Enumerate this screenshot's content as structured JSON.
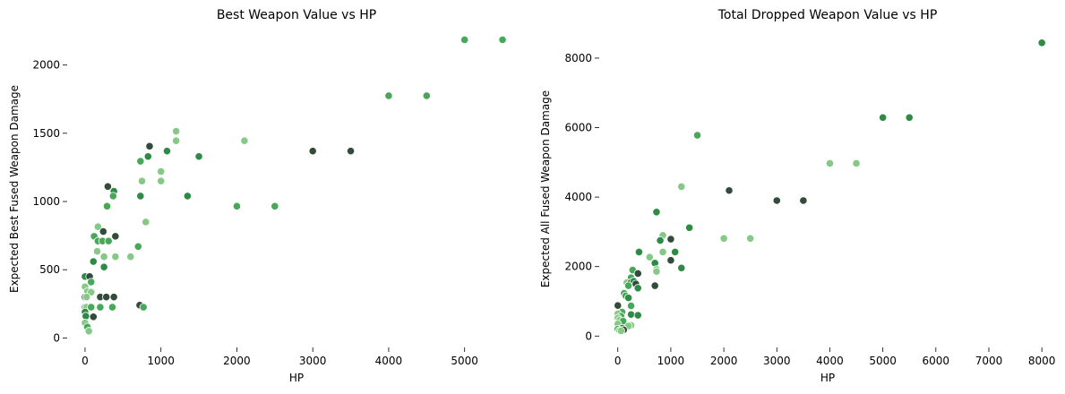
{
  "chart_data": [
    {
      "type": "scatter",
      "title": "Best Weapon Value vs HP",
      "xlabel": "HP",
      "ylabel": "Expected Best Fused Weapon Damage",
      "xlim": [
        -200,
        5700
      ],
      "ylim": [
        -50,
        2280
      ],
      "xticks": [
        0,
        1000,
        2000,
        3000,
        4000,
        5000
      ],
      "yticks": [
        0,
        500,
        1000,
        1500,
        2000
      ],
      "grid": false,
      "colors": [
        "#334b3a",
        "#2e8b45",
        "#47a85a",
        "#86c986"
      ],
      "points": [
        {
          "x": 5000,
          "y": 2185,
          "c": 2
        },
        {
          "x": 5500,
          "y": 2185,
          "c": 2
        },
        {
          "x": 4000,
          "y": 1775,
          "c": 2
        },
        {
          "x": 4500,
          "y": 1775,
          "c": 2
        },
        {
          "x": 1200,
          "y": 1515,
          "c": 3
        },
        {
          "x": 1200,
          "y": 1445,
          "c": 3
        },
        {
          "x": 2100,
          "y": 1445,
          "c": 3
        },
        {
          "x": 850,
          "y": 1405,
          "c": 0
        },
        {
          "x": 1080,
          "y": 1370,
          "c": 1
        },
        {
          "x": 3000,
          "y": 1370,
          "c": 0
        },
        {
          "x": 3500,
          "y": 1370,
          "c": 0
        },
        {
          "x": 1500,
          "y": 1330,
          "c": 1
        },
        {
          "x": 830,
          "y": 1330,
          "c": 1
        },
        {
          "x": 730,
          "y": 1295,
          "c": 2
        },
        {
          "x": 1000,
          "y": 1220,
          "c": 3
        },
        {
          "x": 1000,
          "y": 1150,
          "c": 3
        },
        {
          "x": 750,
          "y": 1150,
          "c": 3
        },
        {
          "x": 300,
          "y": 1110,
          "c": 0
        },
        {
          "x": 380,
          "y": 1075,
          "c": 1
        },
        {
          "x": 370,
          "y": 1040,
          "c": 2
        },
        {
          "x": 730,
          "y": 1040,
          "c": 1
        },
        {
          "x": 1350,
          "y": 1040,
          "c": 1
        },
        {
          "x": 2000,
          "y": 965,
          "c": 2
        },
        {
          "x": 2500,
          "y": 965,
          "c": 2
        },
        {
          "x": 290,
          "y": 965,
          "c": 2
        },
        {
          "x": 800,
          "y": 850,
          "c": 3
        },
        {
          "x": 170,
          "y": 815,
          "c": 3
        },
        {
          "x": 240,
          "y": 780,
          "c": 0
        },
        {
          "x": 120,
          "y": 745,
          "c": 2
        },
        {
          "x": 400,
          "y": 745,
          "c": 0
        },
        {
          "x": 170,
          "y": 710,
          "c": 2
        },
        {
          "x": 230,
          "y": 710,
          "c": 2
        },
        {
          "x": 310,
          "y": 710,
          "c": 2
        },
        {
          "x": 700,
          "y": 670,
          "c": 2
        },
        {
          "x": 160,
          "y": 635,
          "c": 3
        },
        {
          "x": 250,
          "y": 595,
          "c": 3
        },
        {
          "x": 400,
          "y": 595,
          "c": 3
        },
        {
          "x": 600,
          "y": 595,
          "c": 3
        },
        {
          "x": 110,
          "y": 560,
          "c": 1
        },
        {
          "x": 250,
          "y": 520,
          "c": 1
        },
        {
          "x": 0,
          "y": 450,
          "c": 1
        },
        {
          "x": 60,
          "y": 450,
          "c": 0
        },
        {
          "x": 80,
          "y": 410,
          "c": 2
        },
        {
          "x": 0,
          "y": 375,
          "c": 3
        },
        {
          "x": 30,
          "y": 340,
          "c": 3
        },
        {
          "x": 80,
          "y": 335,
          "c": 3
        },
        {
          "x": 0,
          "y": 300,
          "c": 0
        },
        {
          "x": 20,
          "y": 300,
          "c": 3
        },
        {
          "x": 200,
          "y": 300,
          "c": 0
        },
        {
          "x": 280,
          "y": 300,
          "c": 0
        },
        {
          "x": 380,
          "y": 300,
          "c": 0
        },
        {
          "x": 720,
          "y": 240,
          "c": 0
        },
        {
          "x": 770,
          "y": 225,
          "c": 2
        },
        {
          "x": 0,
          "y": 225,
          "c": 2
        },
        {
          "x": 20,
          "y": 225,
          "c": 3
        },
        {
          "x": 80,
          "y": 225,
          "c": 2
        },
        {
          "x": 200,
          "y": 225,
          "c": 2
        },
        {
          "x": 360,
          "y": 225,
          "c": 2
        },
        {
          "x": 0,
          "y": 190,
          "c": 1
        },
        {
          "x": 10,
          "y": 160,
          "c": 1
        },
        {
          "x": 110,
          "y": 155,
          "c": 0
        },
        {
          "x": 0,
          "y": 110,
          "c": 3
        },
        {
          "x": 30,
          "y": 80,
          "c": 2
        },
        {
          "x": 50,
          "y": 50,
          "c": 3
        }
      ]
    },
    {
      "type": "scatter",
      "title": "Total Dropped Weapon Value vs HP",
      "xlabel": "HP",
      "ylabel": "Expected All Fused Weapon Damage",
      "xlim": [
        -300,
        8200
      ],
      "ylim": [
        -250,
        8900
      ],
      "xticks": [
        0,
        1000,
        2000,
        3000,
        4000,
        5000,
        6000,
        7000,
        8000
      ],
      "yticks": [
        0,
        2000,
        4000,
        6000,
        8000
      ],
      "grid": false,
      "colors": [
        "#334b3a",
        "#2e8b45",
        "#47a85a",
        "#86c986"
      ],
      "points": [
        {
          "x": 8000,
          "y": 8440,
          "c": 1
        },
        {
          "x": 5000,
          "y": 6290,
          "c": 1
        },
        {
          "x": 5500,
          "y": 6290,
          "c": 1
        },
        {
          "x": 1500,
          "y": 5780,
          "c": 2
        },
        {
          "x": 4000,
          "y": 4970,
          "c": 3
        },
        {
          "x": 4500,
          "y": 4970,
          "c": 3
        },
        {
          "x": 1200,
          "y": 4300,
          "c": 3
        },
        {
          "x": 2100,
          "y": 4190,
          "c": 0
        },
        {
          "x": 3000,
          "y": 3900,
          "c": 0
        },
        {
          "x": 3500,
          "y": 3900,
          "c": 0
        },
        {
          "x": 730,
          "y": 3570,
          "c": 1
        },
        {
          "x": 1350,
          "y": 3120,
          "c": 1
        },
        {
          "x": 850,
          "y": 2900,
          "c": 3
        },
        {
          "x": 2000,
          "y": 2810,
          "c": 3
        },
        {
          "x": 2500,
          "y": 2810,
          "c": 3
        },
        {
          "x": 1000,
          "y": 2790,
          "c": 0
        },
        {
          "x": 800,
          "y": 2750,
          "c": 1
        },
        {
          "x": 400,
          "y": 2420,
          "c": 1
        },
        {
          "x": 850,
          "y": 2420,
          "c": 3
        },
        {
          "x": 1080,
          "y": 2420,
          "c": 1
        },
        {
          "x": 600,
          "y": 2270,
          "c": 3
        },
        {
          "x": 1000,
          "y": 2180,
          "c": 0
        },
        {
          "x": 700,
          "y": 2100,
          "c": 1
        },
        {
          "x": 1200,
          "y": 1960,
          "c": 1
        },
        {
          "x": 730,
          "y": 1920,
          "c": 3
        },
        {
          "x": 730,
          "y": 1860,
          "c": 3
        },
        {
          "x": 280,
          "y": 1900,
          "c": 2
        },
        {
          "x": 380,
          "y": 1800,
          "c": 0
        },
        {
          "x": 250,
          "y": 1680,
          "c": 2
        },
        {
          "x": 170,
          "y": 1540,
          "c": 3
        },
        {
          "x": 250,
          "y": 1540,
          "c": 0
        },
        {
          "x": 300,
          "y": 1580,
          "c": 1
        },
        {
          "x": 340,
          "y": 1500,
          "c": 0
        },
        {
          "x": 200,
          "y": 1450,
          "c": 2
        },
        {
          "x": 700,
          "y": 1450,
          "c": 0
        },
        {
          "x": 380,
          "y": 1380,
          "c": 1
        },
        {
          "x": 120,
          "y": 1230,
          "c": 2
        },
        {
          "x": 150,
          "y": 1160,
          "c": 2
        },
        {
          "x": 200,
          "y": 1100,
          "c": 1
        },
        {
          "x": 0,
          "y": 880,
          "c": 0
        },
        {
          "x": 250,
          "y": 870,
          "c": 2
        },
        {
          "x": 80,
          "y": 690,
          "c": 2
        },
        {
          "x": 0,
          "y": 640,
          "c": 3
        },
        {
          "x": 250,
          "y": 620,
          "c": 1
        },
        {
          "x": 380,
          "y": 600,
          "c": 1
        },
        {
          "x": 60,
          "y": 570,
          "c": 2
        },
        {
          "x": 0,
          "y": 520,
          "c": 3
        },
        {
          "x": 30,
          "y": 450,
          "c": 3
        },
        {
          "x": 100,
          "y": 430,
          "c": 2
        },
        {
          "x": 0,
          "y": 350,
          "c": 3
        },
        {
          "x": 250,
          "y": 310,
          "c": 3
        },
        {
          "x": 200,
          "y": 290,
          "c": 3
        },
        {
          "x": 80,
          "y": 230,
          "c": 1
        },
        {
          "x": 0,
          "y": 200,
          "c": 2
        },
        {
          "x": 110,
          "y": 180,
          "c": 0
        },
        {
          "x": 30,
          "y": 160,
          "c": 3
        },
        {
          "x": 60,
          "y": 150,
          "c": 3
        }
      ]
    }
  ]
}
